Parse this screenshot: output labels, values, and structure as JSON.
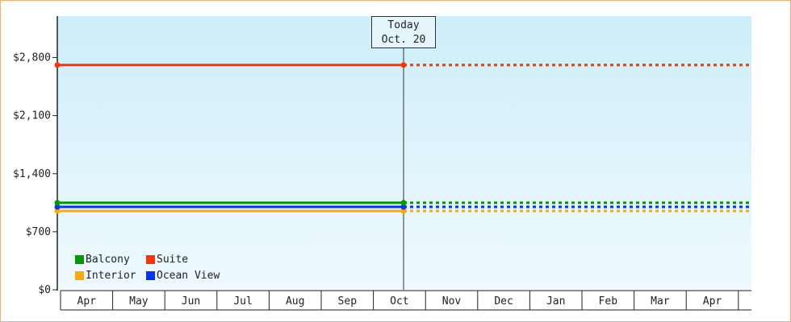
{
  "chart_data": {
    "type": "line",
    "x_months": [
      "Apr",
      "May",
      "Jun",
      "Jul",
      "Aug",
      "Sep",
      "Oct",
      "Nov",
      "Dec",
      "Jan",
      "Feb",
      "Mar",
      "Apr"
    ],
    "ylim": [
      0,
      3300
    ],
    "y_ticks": [
      0,
      700,
      1400,
      2100,
      2800
    ],
    "y_tick_labels": [
      "$0",
      "$700",
      "$1,400",
      "$2,100",
      "$2,800"
    ],
    "today_label": "Today",
    "today_date": "Oct. 20",
    "series": [
      {
        "name": "Suite",
        "color": "#ff3300",
        "values": [
          2710,
          2710,
          2710
        ]
      },
      {
        "name": "Balcony",
        "color": "#009900",
        "values": [
          1050,
          1050,
          1050
        ]
      },
      {
        "name": "Ocean View",
        "color": "#0033ff",
        "values": [
          1000,
          1000,
          1000
        ]
      },
      {
        "name": "Interior",
        "color": "#ffaa00",
        "values": [
          950,
          950,
          950
        ]
      }
    ],
    "series_x": [
      "Apr",
      "Oct. 20",
      "Apr"
    ],
    "legend": [
      {
        "name": "Balcony",
        "color": "#009900"
      },
      {
        "name": "Suite",
        "color": "#ff3300"
      },
      {
        "name": "Interior",
        "color": "#ffaa00"
      },
      {
        "name": "Ocean View",
        "color": "#0033ff"
      }
    ],
    "grid": false,
    "legend_position": "bottom-left"
  }
}
